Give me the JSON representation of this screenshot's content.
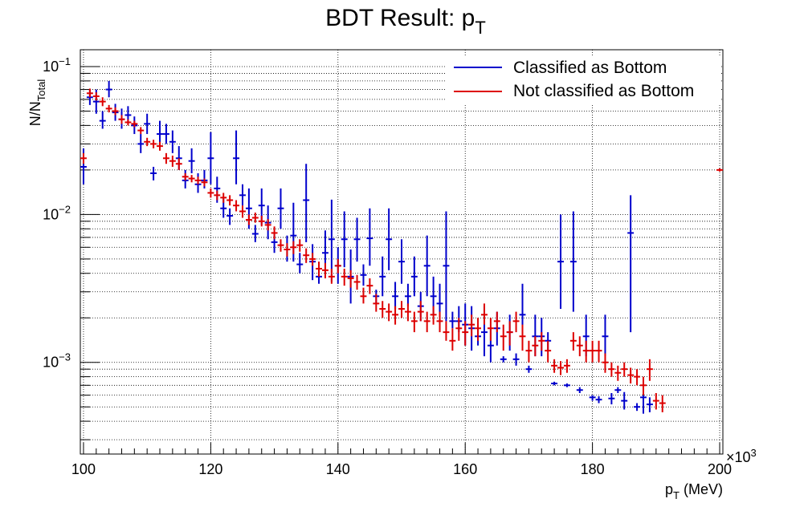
{
  "chart_data": {
    "type": "scatter",
    "title": "BDT Result: p",
    "title_sub": "T",
    "xlabel_main": "p",
    "xlabel_sub": "T",
    "xlabel_unit": " (MeV)",
    "ylabel_main": "N/N",
    "ylabel_sub": "Total",
    "x_multiplier": "×10",
    "x_multiplier_exp": "3",
    "xlim": [
      99.5,
      200.5
    ],
    "ylim": [
      0.00024,
      0.13
    ],
    "y_scale": "log",
    "grid": true,
    "legend_position": "top-right",
    "x_tick_labels": [
      "100",
      "120",
      "140",
      "160",
      "180",
      "200"
    ],
    "y_tick_labels": [
      {
        "base": "10",
        "exp": "−1",
        "value": 0.1
      },
      {
        "base": "10",
        "exp": "−2",
        "value": 0.01
      },
      {
        "base": "10",
        "exp": "−3",
        "value": 0.001
      }
    ],
    "bin_width": 1,
    "series": [
      {
        "name": "Classified as Bottom",
        "color": "#0000cc",
        "points": [
          [
            100,
            0.021,
            0.016,
            0.028
          ],
          [
            101,
            0.062,
            0.055,
            0.07
          ],
          [
            102,
            0.058,
            0.048,
            0.07
          ],
          [
            103,
            0.043,
            0.038,
            0.05
          ],
          [
            104,
            0.07,
            0.062,
            0.08
          ],
          [
            105,
            0.049,
            0.043,
            0.056
          ],
          [
            106,
            0.044,
            0.038,
            0.052
          ],
          [
            107,
            0.047,
            0.041,
            0.054
          ],
          [
            108,
            0.04,
            0.035,
            0.046
          ],
          [
            109,
            0.03,
            0.026,
            0.035
          ],
          [
            110,
            0.041,
            0.035,
            0.048
          ],
          [
            111,
            0.019,
            0.017,
            0.021
          ],
          [
            112,
            0.035,
            0.029,
            0.043
          ],
          [
            113,
            0.035,
            0.03,
            0.041
          ],
          [
            114,
            0.031,
            0.026,
            0.037
          ],
          [
            115,
            0.024,
            0.02,
            0.029
          ],
          [
            116,
            0.017,
            0.015,
            0.02
          ],
          [
            117,
            0.023,
            0.019,
            0.028
          ],
          [
            118,
            0.016,
            0.014,
            0.019
          ],
          [
            119,
            0.017,
            0.015,
            0.02
          ],
          [
            120,
            0.024,
            0.016,
            0.036
          ],
          [
            121,
            0.015,
            0.012,
            0.018
          ],
          [
            122,
            0.011,
            0.0095,
            0.013
          ],
          [
            123,
            0.0098,
            0.0085,
            0.011
          ],
          [
            124,
            0.024,
            0.016,
            0.037
          ],
          [
            125,
            0.0135,
            0.0115,
            0.016
          ],
          [
            126,
            0.011,
            0.008,
            0.015
          ],
          [
            127,
            0.0074,
            0.0065,
            0.0085
          ],
          [
            128,
            0.0115,
            0.0085,
            0.015
          ],
          [
            129,
            0.0088,
            0.0068,
            0.0115
          ],
          [
            130,
            0.0065,
            0.0055,
            0.0075
          ],
          [
            131,
            0.011,
            0.008,
            0.015
          ],
          [
            132,
            0.0058,
            0.0048,
            0.0072
          ],
          [
            133,
            0.0072,
            0.0048,
            0.012
          ],
          [
            134,
            0.0046,
            0.004,
            0.0055
          ],
          [
            135,
            0.0125,
            0.0065,
            0.022
          ],
          [
            136,
            0.0048,
            0.0036,
            0.0063
          ],
          [
            137,
            0.0038,
            0.0034,
            0.0043
          ],
          [
            138,
            0.0055,
            0.004,
            0.0078
          ],
          [
            139,
            0.0068,
            0.0035,
            0.0126
          ],
          [
            140,
            0.0045,
            0.0034,
            0.006
          ],
          [
            141,
            0.0068,
            0.0044,
            0.0105
          ],
          [
            142,
            0.0038,
            0.0025,
            0.0058
          ],
          [
            143,
            0.0068,
            0.0048,
            0.0095
          ],
          [
            144,
            0.0039,
            0.0033,
            0.0046
          ],
          [
            145,
            0.0069,
            0.0045,
            0.011
          ],
          [
            146,
            0.0028,
            0.0025,
            0.0031
          ],
          [
            147,
            0.0038,
            0.0028,
            0.0052
          ],
          [
            148,
            0.0068,
            0.0042,
            0.011
          ],
          [
            149,
            0.0028,
            0.0023,
            0.0035
          ],
          [
            150,
            0.0048,
            0.0034,
            0.0068
          ],
          [
            151,
            0.0028,
            0.0024,
            0.0034
          ],
          [
            152,
            0.0038,
            0.0028,
            0.0052
          ],
          [
            153,
            0.0024,
            0.0019,
            0.003
          ],
          [
            154,
            0.0045,
            0.0028,
            0.0072
          ],
          [
            155,
            0.0028,
            0.0021,
            0.0038
          ],
          [
            156,
            0.0025,
            0.0018,
            0.0034
          ],
          [
            157,
            0.0045,
            0.0019,
            0.0105
          ],
          [
            158,
            0.0019,
            0.0017,
            0.0022
          ],
          [
            159,
            0.0019,
            0.0016,
            0.0024
          ],
          [
            160,
            0.0018,
            0.0013,
            0.0025
          ],
          [
            161,
            0.0017,
            0.0012,
            0.0024
          ],
          [
            162,
            0.0015,
            0.0013,
            0.0017
          ],
          [
            163,
            0.0016,
            0.0011,
            0.0024
          ],
          [
            164,
            0.0013,
            0.001,
            0.0017
          ],
          [
            165,
            0.0017,
            0.0013,
            0.0022
          ],
          [
            166,
            0.00105,
            0.001,
            0.0011
          ],
          [
            167,
            0.0016,
            0.0012,
            0.0021
          ],
          [
            168,
            0.00105,
            0.00095,
            0.00115
          ],
          [
            169,
            0.0021,
            0.0013,
            0.0034
          ],
          [
            170,
            0.0009,
            0.00085,
            0.00095
          ],
          [
            171,
            0.0015,
            0.0011,
            0.0021
          ],
          [
            172,
            0.0015,
            0.0011,
            0.002
          ],
          [
            173,
            0.0014,
            0.0012,
            0.0016
          ],
          [
            174,
            0.00072,
            0.0007,
            0.00074
          ],
          [
            175,
            0.0048,
            0.0023,
            0.01
          ],
          [
            176,
            0.0007,
            0.00068,
            0.00072
          ],
          [
            177,
            0.0048,
            0.0022,
            0.0105
          ],
          [
            178,
            0.00065,
            0.00062,
            0.00068
          ],
          [
            179,
            0.0015,
            0.0011,
            0.0021
          ],
          [
            180,
            0.00058,
            0.00055,
            0.0006
          ],
          [
            181,
            0.00056,
            0.00053,
            0.00059
          ],
          [
            182,
            0.0015,
            0.0011,
            0.0021
          ],
          [
            183,
            0.00057,
            0.00052,
            0.00062
          ],
          [
            184,
            0.00065,
            0.00062,
            0.00068
          ],
          [
            185,
            0.00055,
            0.00048,
            0.00063
          ],
          [
            186,
            0.0075,
            0.0016,
            0.0135
          ],
          [
            187,
            0.0005,
            0.00047,
            0.00053
          ],
          [
            188,
            0.00058,
            0.00045,
            0.00074
          ],
          [
            189,
            0.00052,
            0.00046,
            0.00058
          ]
        ]
      },
      {
        "name": "Not classified as Bottom",
        "color": "#dd0000",
        "points": [
          [
            100,
            0.024,
            0.022,
            0.026
          ],
          [
            101,
            0.066,
            0.062,
            0.071
          ],
          [
            102,
            0.063,
            0.059,
            0.067
          ],
          [
            103,
            0.058,
            0.054,
            0.062
          ],
          [
            104,
            0.052,
            0.049,
            0.055
          ],
          [
            105,
            0.05,
            0.047,
            0.053
          ],
          [
            106,
            0.044,
            0.041,
            0.047
          ],
          [
            107,
            0.042,
            0.04,
            0.044
          ],
          [
            108,
            0.041,
            0.039,
            0.043
          ],
          [
            109,
            0.037,
            0.035,
            0.039
          ],
          [
            110,
            0.031,
            0.029,
            0.033
          ],
          [
            111,
            0.03,
            0.028,
            0.032
          ],
          [
            112,
            0.029,
            0.027,
            0.031
          ],
          [
            113,
            0.024,
            0.022,
            0.026
          ],
          [
            114,
            0.023,
            0.021,
            0.025
          ],
          [
            115,
            0.022,
            0.02,
            0.024
          ],
          [
            116,
            0.018,
            0.017,
            0.019
          ],
          [
            117,
            0.0175,
            0.0165,
            0.0185
          ],
          [
            118,
            0.017,
            0.016,
            0.018
          ],
          [
            119,
            0.0165,
            0.0155,
            0.0175
          ],
          [
            120,
            0.014,
            0.013,
            0.015
          ],
          [
            121,
            0.0135,
            0.0125,
            0.0145
          ],
          [
            122,
            0.013,
            0.012,
            0.014
          ],
          [
            123,
            0.0125,
            0.0115,
            0.0135
          ],
          [
            124,
            0.0115,
            0.0105,
            0.0125
          ],
          [
            125,
            0.0105,
            0.0095,
            0.0115
          ],
          [
            126,
            0.0092,
            0.0085,
            0.01
          ],
          [
            127,
            0.0095,
            0.0088,
            0.0103
          ],
          [
            128,
            0.009,
            0.0083,
            0.0098
          ],
          [
            129,
            0.0085,
            0.0078,
            0.0093
          ],
          [
            130,
            0.0075,
            0.0068,
            0.0083
          ],
          [
            131,
            0.0062,
            0.0056,
            0.0068
          ],
          [
            132,
            0.0058,
            0.0052,
            0.0064
          ],
          [
            133,
            0.006,
            0.0054,
            0.0066
          ],
          [
            134,
            0.0062,
            0.0056,
            0.0068
          ],
          [
            135,
            0.0053,
            0.0047,
            0.0059
          ],
          [
            136,
            0.005,
            0.0045,
            0.0055
          ],
          [
            137,
            0.0043,
            0.0038,
            0.0048
          ],
          [
            138,
            0.0042,
            0.0037,
            0.0047
          ],
          [
            139,
            0.0038,
            0.0034,
            0.0043
          ],
          [
            140,
            0.0045,
            0.004,
            0.005
          ],
          [
            141,
            0.0038,
            0.0033,
            0.0043
          ],
          [
            142,
            0.0037,
            0.0032,
            0.0042
          ],
          [
            143,
            0.0035,
            0.0031,
            0.0039
          ],
          [
            144,
            0.0028,
            0.0025,
            0.0032
          ],
          [
            145,
            0.0033,
            0.0029,
            0.0037
          ],
          [
            146,
            0.0025,
            0.0022,
            0.0029
          ],
          [
            147,
            0.0023,
            0.002,
            0.0026
          ],
          [
            148,
            0.0022,
            0.0019,
            0.0025
          ],
          [
            149,
            0.0021,
            0.0018,
            0.0024
          ],
          [
            150,
            0.0023,
            0.002,
            0.0026
          ],
          [
            151,
            0.0022,
            0.0019,
            0.0025
          ],
          [
            152,
            0.0019,
            0.0016,
            0.0022
          ],
          [
            153,
            0.0022,
            0.0019,
            0.0026
          ],
          [
            154,
            0.0019,
            0.0016,
            0.0022
          ],
          [
            155,
            0.0021,
            0.0018,
            0.0024
          ],
          [
            156,
            0.0019,
            0.0016,
            0.0022
          ],
          [
            157,
            0.0016,
            0.0014,
            0.0019
          ],
          [
            158,
            0.0014,
            0.0012,
            0.0017
          ],
          [
            159,
            0.0017,
            0.0014,
            0.002
          ],
          [
            160,
            0.0016,
            0.0013,
            0.0019
          ],
          [
            161,
            0.0018,
            0.0015,
            0.0021
          ],
          [
            162,
            0.0017,
            0.0014,
            0.002
          ],
          [
            163,
            0.0021,
            0.0018,
            0.0025
          ],
          [
            164,
            0.0017,
            0.0014,
            0.002
          ],
          [
            165,
            0.0019,
            0.0016,
            0.0022
          ],
          [
            166,
            0.0015,
            0.0012,
            0.0018
          ],
          [
            167,
            0.0016,
            0.0013,
            0.0019
          ],
          [
            168,
            0.0019,
            0.0016,
            0.0022
          ],
          [
            169,
            0.0015,
            0.0012,
            0.0018
          ],
          [
            170,
            0.0012,
            0.001,
            0.0014
          ],
          [
            171,
            0.0013,
            0.0011,
            0.0015
          ],
          [
            172,
            0.0014,
            0.0012,
            0.0016
          ],
          [
            173,
            0.0012,
            0.001,
            0.0014
          ],
          [
            174,
            0.00095,
            0.00085,
            0.00105
          ],
          [
            175,
            0.00092,
            0.00082,
            0.00102
          ],
          [
            176,
            0.00095,
            0.00085,
            0.00105
          ],
          [
            177,
            0.0014,
            0.0012,
            0.0016
          ],
          [
            178,
            0.0013,
            0.0011,
            0.0015
          ],
          [
            179,
            0.0012,
            0.001,
            0.0014
          ],
          [
            180,
            0.0012,
            0.001,
            0.0014
          ],
          [
            181,
            0.0012,
            0.001,
            0.0014
          ],
          [
            182,
            0.001,
            0.00085,
            0.00115
          ],
          [
            183,
            0.0009,
            0.0008,
            0.001
          ],
          [
            184,
            0.00085,
            0.00075,
            0.00095
          ],
          [
            185,
            0.0009,
            0.0008,
            0.001
          ],
          [
            186,
            0.00082,
            0.00072,
            0.00092
          ],
          [
            187,
            0.0008,
            0.0007,
            0.0009
          ],
          [
            188,
            0.0007,
            0.0006,
            0.0008
          ],
          [
            189,
            0.0009,
            0.00075,
            0.00105
          ],
          [
            190,
            0.00055,
            0.00048,
            0.00062
          ],
          [
            191,
            0.00053,
            0.00046,
            0.0006
          ],
          [
            200,
            0.02,
            0.0195,
            0.0205
          ]
        ]
      }
    ]
  }
}
